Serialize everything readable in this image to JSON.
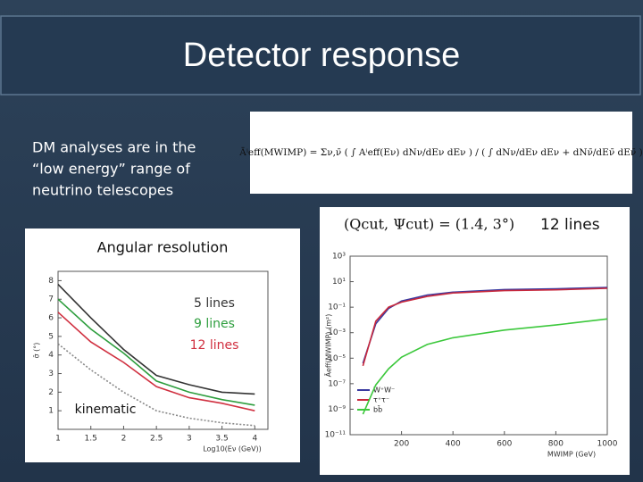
{
  "title": "Detector response",
  "intro": [
    "DM analyses are in the",
    "“low energy” range of",
    "neutrino telescopes"
  ],
  "formula": "Āⁱeff(MWIMP) = Σν,ν̄ ( ∫ Aⁱeff(Eν) dNν/dEν dEν ) / ( ∫ dNν/dEν dEν + dNν̄/dEν̄ dEν̄ )",
  "chart_data": [
    {
      "type": "line",
      "title": "Angular resolution",
      "y_label": "σ̄ (°)",
      "x_label": "Log10(Eν (GeV))",
      "x": [
        1,
        1.5,
        2,
        2.5,
        3,
        3.5,
        4
      ],
      "series": [
        {
          "name": "5 lines",
          "color": "#333333",
          "values": [
            7.8,
            6.0,
            4.3,
            2.9,
            2.4,
            2.0,
            1.9
          ]
        },
        {
          "name": "9 lines",
          "color": "#2e9e3e",
          "values": [
            7.0,
            5.4,
            4.1,
            2.6,
            2.0,
            1.6,
            1.3
          ]
        },
        {
          "name": "12 lines",
          "color": "#d03040",
          "values": [
            6.3,
            4.7,
            3.6,
            2.3,
            1.7,
            1.4,
            1.0
          ]
        },
        {
          "name": "kinematic",
          "color": "#888888",
          "dashed": true,
          "values": [
            4.6,
            3.2,
            2.0,
            1.0,
            0.6,
            0.35,
            0.2
          ]
        }
      ],
      "xlim": [
        1,
        4.2
      ],
      "xticks": [
        1,
        1.5,
        2,
        2.5,
        3,
        3.5,
        4
      ],
      "ylim": [
        0,
        8.5
      ],
      "yticks": [
        1,
        2,
        3,
        4,
        5,
        6,
        7,
        8
      ],
      "legend": "inline"
    },
    {
      "type": "line",
      "subtitle": "(Qcut, Ψcut) = (1.4, 3°)",
      "note": "12 lines",
      "y_label": "Āeff(MWIMP) (m²)",
      "x_label": "MWIMP (GeV)",
      "x": [
        50,
        100,
        150,
        200,
        300,
        400,
        600,
        800,
        1000
      ],
      "series": [
        {
          "name": "W⁺W⁻",
          "color": "#3a3aa0",
          "values": [
            4e-06,
            0.005,
            0.08,
            0.3,
            0.9,
            1.5,
            2.4,
            2.8,
            3.5
          ]
        },
        {
          "name": "τ⁺τ⁻",
          "color": "#c8283c",
          "values": [
            2.5e-06,
            0.008,
            0.1,
            0.25,
            0.7,
            1.3,
            2,
            2.3,
            3
          ]
        },
        {
          "name": "bb̄",
          "color": "#3cc83c",
          "values": [
            4e-10,
            8e-08,
            1.5e-06,
            1.2e-05,
            0.00012,
            0.0004,
            0.0016,
            0.004,
            0.012
          ]
        }
      ],
      "xlim": [
        0,
        1000
      ],
      "xticks": [
        200,
        400,
        600,
        800,
        1000
      ],
      "ylim": [
        1e-11,
        1000
      ],
      "log_y": true,
      "yticks": [
        {
          "value": 1000,
          "label": "10³"
        },
        {
          "value": 10,
          "label": "10¹"
        },
        {
          "value": 0.1,
          "label": "10⁻¹"
        },
        {
          "value": 0.001,
          "label": "10⁻³"
        },
        {
          "value": 1e-05,
          "label": "10⁻⁵"
        },
        {
          "value": 1e-07,
          "label": "10⁻⁷"
        },
        {
          "value": 1e-09,
          "label": "10⁻⁹"
        },
        {
          "value": 1e-11,
          "label": "10⁻¹¹"
        }
      ],
      "legend": "lower left"
    }
  ]
}
